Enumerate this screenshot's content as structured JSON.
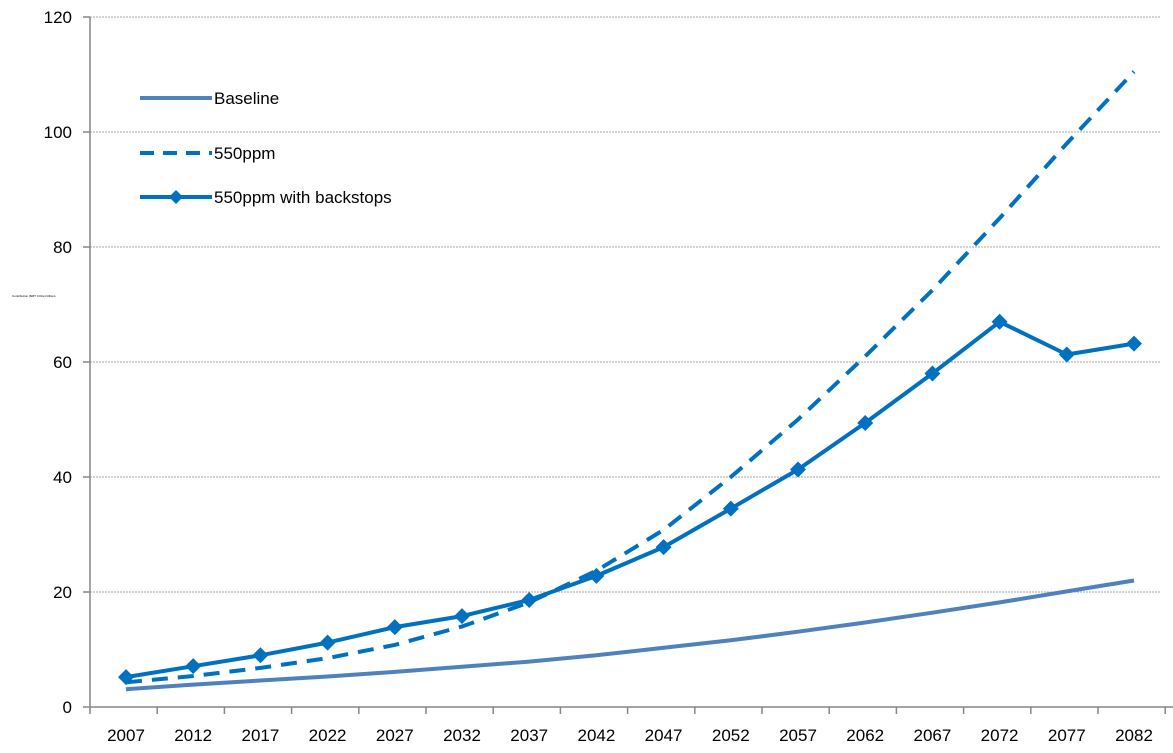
{
  "chart_data": {
    "type": "line",
    "title": "",
    "xlabel": "",
    "ylabel": "",
    "tiny_axis_label": "Contribution ($MT CO2e) billions",
    "categories": [
      "2007",
      "2012",
      "2017",
      "2022",
      "2027",
      "2032",
      "2037",
      "2042",
      "2047",
      "2052",
      "2057",
      "2062",
      "2067",
      "2072",
      "2077",
      "2082"
    ],
    "ylim": [
      0,
      120
    ],
    "yticks": [
      0,
      20,
      40,
      60,
      80,
      100,
      120
    ],
    "grid": true,
    "legend_position": "top-left",
    "series": [
      {
        "name": "Baseline",
        "style": "solid",
        "color": "#4f81bd",
        "values": [
          3.1,
          3.9,
          4.6,
          5.3,
          6.1,
          7.0,
          7.9,
          9.0,
          10.3,
          11.6,
          13.1,
          14.7,
          16.4,
          18.2,
          20.1,
          22.0
        ]
      },
      {
        "name": "550ppm",
        "style": "dashed",
        "color": "#0070c0",
        "values": [
          4.3,
          5.4,
          6.8,
          8.5,
          10.8,
          14.0,
          18.2,
          23.7,
          30.8,
          40.0,
          50.0,
          61.0,
          72.5,
          85.0,
          98.0,
          110.5
        ]
      },
      {
        "name": "550ppm with backstops",
        "style": "solid-diamond",
        "color": "#0070c0",
        "values": [
          5.2,
          7.1,
          9.0,
          11.2,
          13.9,
          15.8,
          18.6,
          22.8,
          27.8,
          34.5,
          41.3,
          49.4,
          58.0,
          67.0,
          61.3,
          63.2
        ]
      }
    ]
  }
}
